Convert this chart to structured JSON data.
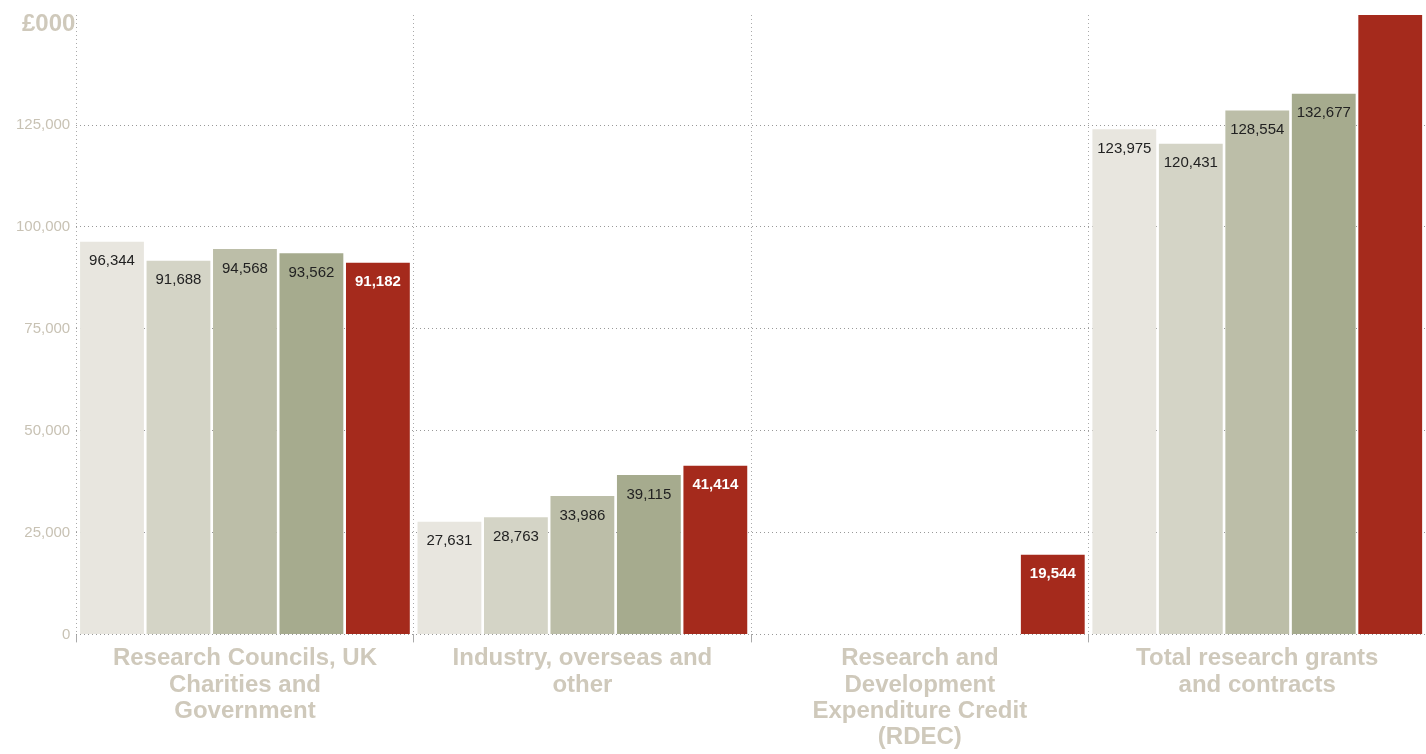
{
  "chart_data": {
    "type": "bar",
    "ylabel": "£000",
    "categories": [
      "Research Councils, UK Charities and Government",
      "Industry, overseas and other",
      "Research and Development Expenditure Credit (RDEC)",
      "Total research grants and contracts"
    ],
    "series": [
      {
        "color": "#e8e6df",
        "values": [
          96344,
          27631,
          null,
          123975
        ],
        "value_labels": [
          "96,344",
          "27,631",
          null,
          "123,975"
        ]
      },
      {
        "color": "#d4d4c6",
        "values": [
          91688,
          28763,
          null,
          120431
        ],
        "value_labels": [
          "91,688",
          "28,763",
          null,
          "120,431"
        ]
      },
      {
        "color": "#bcbea8",
        "values": [
          94568,
          33986,
          null,
          128554
        ],
        "value_labels": [
          "94,568",
          "33,986",
          null,
          "128,554"
        ]
      },
      {
        "color": "#a6ab8e",
        "values": [
          93562,
          39115,
          null,
          132677
        ],
        "value_labels": [
          "93,562",
          "39,115",
          null,
          "132,677"
        ]
      },
      {
        "color": "#a52a1c",
        "values": [
          91182,
          41414,
          19544,
          152000
        ],
        "value_labels": [
          "91,182",
          "41,414",
          "19,544",
          null
        ]
      }
    ],
    "ylim": [
      0,
      152000
    ],
    "yticks": [
      0,
      {
        "value": 25000,
        "label": "25,000"
      },
      {
        "value": 50000,
        "label": "50,000"
      },
      {
        "value": 75000,
        "label": "75,000"
      },
      {
        "value": 100000,
        "label": "100,000"
      },
      {
        "value": 125000,
        "label": "125,000"
      }
    ],
    "grid": true,
    "legend": false
  }
}
